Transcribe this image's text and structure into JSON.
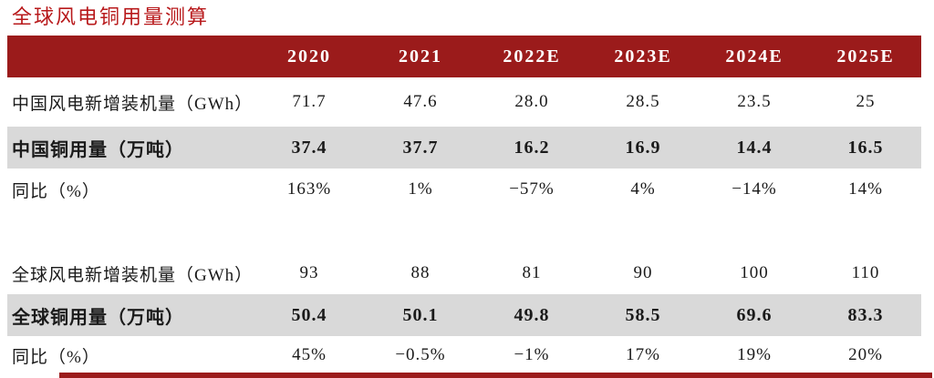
{
  "title": "全球风电铜用量测算",
  "colors": {
    "header_bg": "#9B1B1B",
    "highlight_bg": "#D9D9D9",
    "title_color": "#B8191B",
    "text_color": "#1A1A1A"
  },
  "table": {
    "columns": [
      "2020",
      "2021",
      "2022E",
      "2023E",
      "2024E",
      "2025E"
    ],
    "rows": [
      {
        "label": "中国风电新增装机量（GWh）",
        "style": "normal first",
        "values": [
          "71.7",
          "47.6",
          "28.0",
          "28.5",
          "23.5",
          "25"
        ]
      },
      {
        "label": "中国铜用量（万吨）",
        "style": "highlight",
        "values": [
          "37.4",
          "37.7",
          "16.2",
          "16.9",
          "14.4",
          "16.5"
        ]
      },
      {
        "label": "同比（%）",
        "style": "normal",
        "values": [
          "163%",
          "1%",
          "−57%",
          "4%",
          "−14%",
          "14%"
        ]
      },
      {
        "label": "",
        "style": "spacer",
        "values": [
          "",
          "",
          "",
          "",
          "",
          ""
        ]
      },
      {
        "label": "全球风电新增装机量（GWh）",
        "style": "normal",
        "values": [
          "93",
          "88",
          "81",
          "90",
          "100",
          "110"
        ]
      },
      {
        "label": "全球铜用量（万吨）",
        "style": "highlight",
        "values": [
          "50.4",
          "50.1",
          "49.8",
          "58.5",
          "69.6",
          "83.3"
        ]
      },
      {
        "label": "同比（%）",
        "style": "normal last",
        "values": [
          "45%",
          "−0.5%",
          "−1%",
          "17%",
          "19%",
          "20%"
        ]
      }
    ]
  },
  "chart_data": {
    "type": "table",
    "title": "全球风电铜用量测算",
    "categories": [
      "2020",
      "2021",
      "2022E",
      "2023E",
      "2024E",
      "2025E"
    ],
    "series": [
      {
        "name": "中国风电新增装机量（GWh）",
        "values": [
          71.7,
          47.6,
          28.0,
          28.5,
          23.5,
          25
        ]
      },
      {
        "name": "中国铜用量（万吨）",
        "values": [
          37.4,
          37.7,
          16.2,
          16.9,
          14.4,
          16.5
        ]
      },
      {
        "name": "中国同比（%）",
        "values": [
          163,
          1,
          -57,
          4,
          -14,
          14
        ]
      },
      {
        "name": "全球风电新增装机量（GWh）",
        "values": [
          93,
          88,
          81,
          90,
          100,
          110
        ]
      },
      {
        "name": "全球铜用量（万吨）",
        "values": [
          50.4,
          50.1,
          49.8,
          58.5,
          69.6,
          83.3
        ]
      },
      {
        "name": "全球同比（%）",
        "values": [
          45,
          -0.5,
          -1,
          17,
          19,
          20
        ]
      }
    ]
  }
}
